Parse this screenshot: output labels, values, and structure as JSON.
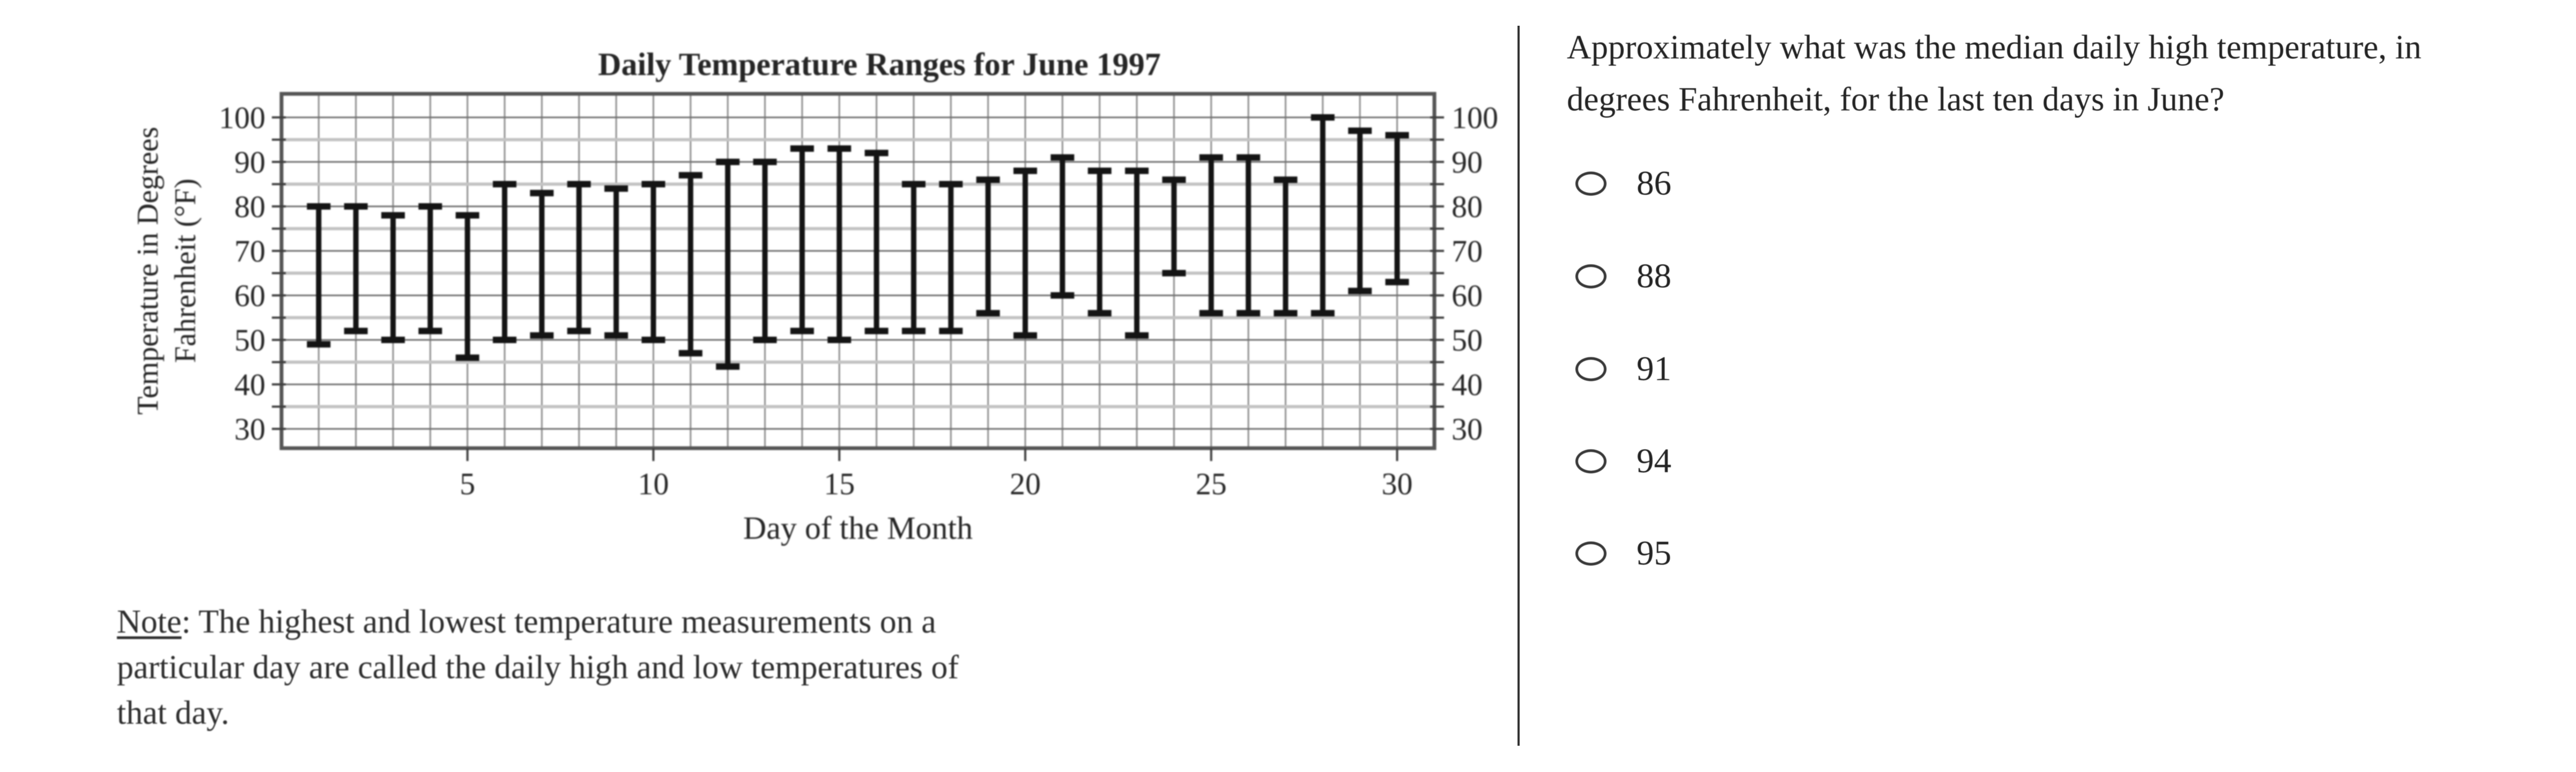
{
  "chart_data": {
    "type": "bar",
    "variant": "vertical-range-bars",
    "title": "Daily Temperature Ranges for June 1997",
    "xlabel": "Day of the Month",
    "ylabel_lines": [
      "Temperature in Degrees",
      "Fahrenheit (°F)"
    ],
    "x": [
      1,
      2,
      3,
      4,
      5,
      6,
      7,
      8,
      9,
      10,
      11,
      12,
      13,
      14,
      15,
      16,
      17,
      18,
      19,
      20,
      21,
      22,
      23,
      24,
      25,
      26,
      27,
      28,
      29,
      30
    ],
    "series": [
      {
        "name": "daily high",
        "values": [
          80,
          80,
          78,
          80,
          78,
          85,
          83,
          85,
          84,
          85,
          87,
          90,
          90,
          93,
          93,
          92,
          85,
          85,
          86,
          88,
          91,
          88,
          88,
          86,
          91,
          91,
          86,
          100,
          97,
          96
        ]
      },
      {
        "name": "daily low",
        "values": [
          49,
          52,
          50,
          52,
          46,
          50,
          51,
          52,
          51,
          50,
          47,
          44,
          50,
          52,
          50,
          52,
          52,
          52,
          56,
          51,
          60,
          56,
          51,
          65,
          56,
          56,
          56,
          56,
          61,
          63
        ]
      }
    ],
    "ylim": [
      25,
      105
    ],
    "y_ticks_labeled": [
      30,
      40,
      50,
      60,
      70,
      80,
      90,
      100
    ],
    "y_minor_step": 5,
    "x_ticks_labeled": [
      5,
      10,
      15,
      20,
      25,
      30
    ],
    "grid": "both",
    "legend": "none"
  },
  "note": {
    "label": "Note",
    "line1_rest": ": The highest and lowest temperature measurements on a",
    "line2": "particular day are called the daily high and low temperatures of",
    "line3": "that day."
  },
  "question": {
    "lines": [
      "Approximately what was the median daily high temperature, in",
      "degrees Fahrenheit, for the last ten days in June?"
    ]
  },
  "options": [
    "86",
    "88",
    "91",
    "94",
    "95"
  ]
}
